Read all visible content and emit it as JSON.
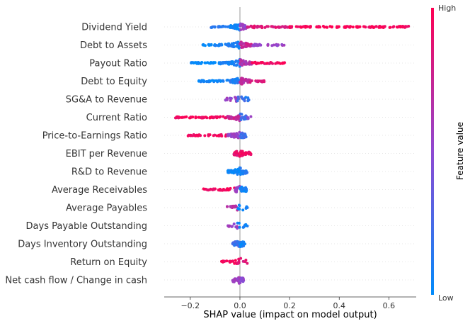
{
  "chart_data": {
    "type": "scatter",
    "subtype": "shap-beeswarm",
    "title": "",
    "xlabel": "SHAP value (impact on model output)",
    "ylabel": "",
    "xlim": [
      -0.305,
      0.71
    ],
    "xticks": [
      -0.2,
      0.0,
      0.2,
      0.4,
      0.6
    ],
    "xtick_labels": [
      "−0.2",
      "0.0",
      "0.2",
      "0.4",
      "0.6"
    ],
    "zero_line": 0.0,
    "grid": false,
    "colorbar": {
      "label": "Feature value",
      "high_label": "High",
      "low_label": "Low",
      "low_color": "#008bfb",
      "mid_color": "#8f49d2",
      "high_color": "#ff0052"
    },
    "features": [
      {
        "name": "Dividend Yield",
        "ranges": [
          [
            -0.12,
            -0.04,
            0.15
          ],
          [
            -0.04,
            0.0,
            0.05
          ],
          [
            0.0,
            0.03,
            0.55
          ],
          [
            0.03,
            0.2,
            0.85
          ],
          [
            0.2,
            0.68,
            0.98
          ]
        ]
      },
      {
        "name": "Debt to Assets",
        "ranges": [
          [
            -0.15,
            -0.05,
            0.05
          ],
          [
            -0.05,
            0.0,
            0.1
          ],
          [
            0.0,
            0.05,
            0.75
          ],
          [
            0.05,
            0.18,
            0.55
          ]
        ]
      },
      {
        "name": "Payout Ratio",
        "ranges": [
          [
            -0.2,
            -0.08,
            0.0
          ],
          [
            -0.08,
            0.0,
            0.08
          ],
          [
            0.0,
            0.05,
            0.65
          ],
          [
            0.05,
            0.18,
            0.95
          ]
        ]
      },
      {
        "name": "Debt to Equity",
        "ranges": [
          [
            -0.17,
            -0.04,
            0.05
          ],
          [
            -0.04,
            0.0,
            0.12
          ],
          [
            0.0,
            0.04,
            0.7
          ],
          [
            0.04,
            0.1,
            0.85
          ]
        ]
      },
      {
        "name": "SG&A to Revenue",
        "ranges": [
          [
            -0.06,
            -0.01,
            0.55
          ],
          [
            -0.01,
            0.02,
            0.25
          ],
          [
            0.02,
            0.04,
            0.15
          ]
        ]
      },
      {
        "name": "Current Ratio",
        "ranges": [
          [
            -0.26,
            -0.05,
            0.95
          ],
          [
            -0.05,
            0.0,
            0.75
          ],
          [
            0.0,
            0.03,
            0.2
          ],
          [
            0.03,
            0.05,
            0.5
          ]
        ]
      },
      {
        "name": "Price-to-Earnings Ratio",
        "ranges": [
          [
            -0.21,
            -0.05,
            0.95
          ],
          [
            -0.05,
            0.0,
            0.55
          ],
          [
            0.0,
            0.03,
            0.2
          ]
        ]
      },
      {
        "name": "EBIT per Revenue",
        "ranges": [
          [
            -0.025,
            0.0,
            0.9
          ],
          [
            0.0,
            0.045,
            0.95
          ]
        ]
      },
      {
        "name": "R&D to Revenue",
        "ranges": [
          [
            -0.05,
            0.0,
            0.05
          ],
          [
            0.0,
            0.03,
            0.1
          ]
        ]
      },
      {
        "name": "Average Receivables",
        "ranges": [
          [
            -0.15,
            -0.02,
            0.95
          ],
          [
            -0.02,
            0.0,
            0.55
          ],
          [
            0.0,
            0.03,
            0.05
          ]
        ]
      },
      {
        "name": "Average Payables",
        "ranges": [
          [
            -0.06,
            -0.01,
            0.65
          ],
          [
            -0.01,
            0.03,
            0.05
          ]
        ]
      },
      {
        "name": "Days Payable Outstanding",
        "ranges": [
          [
            -0.05,
            -0.01,
            0.55
          ],
          [
            -0.01,
            0.03,
            0.05
          ]
        ]
      },
      {
        "name": "Days Inventory Outstanding",
        "ranges": [
          [
            -0.03,
            0.0,
            0.2
          ],
          [
            0.0,
            0.02,
            0.05
          ]
        ]
      },
      {
        "name": "Return on Equity",
        "ranges": [
          [
            -0.075,
            -0.01,
            0.95
          ],
          [
            -0.01,
            0.03,
            0.85
          ]
        ]
      },
      {
        "name": "Net cash flow / Change in cash",
        "ranges": [
          [
            -0.03,
            0.0,
            0.55
          ],
          [
            0.0,
            0.015,
            0.5
          ]
        ]
      }
    ]
  }
}
